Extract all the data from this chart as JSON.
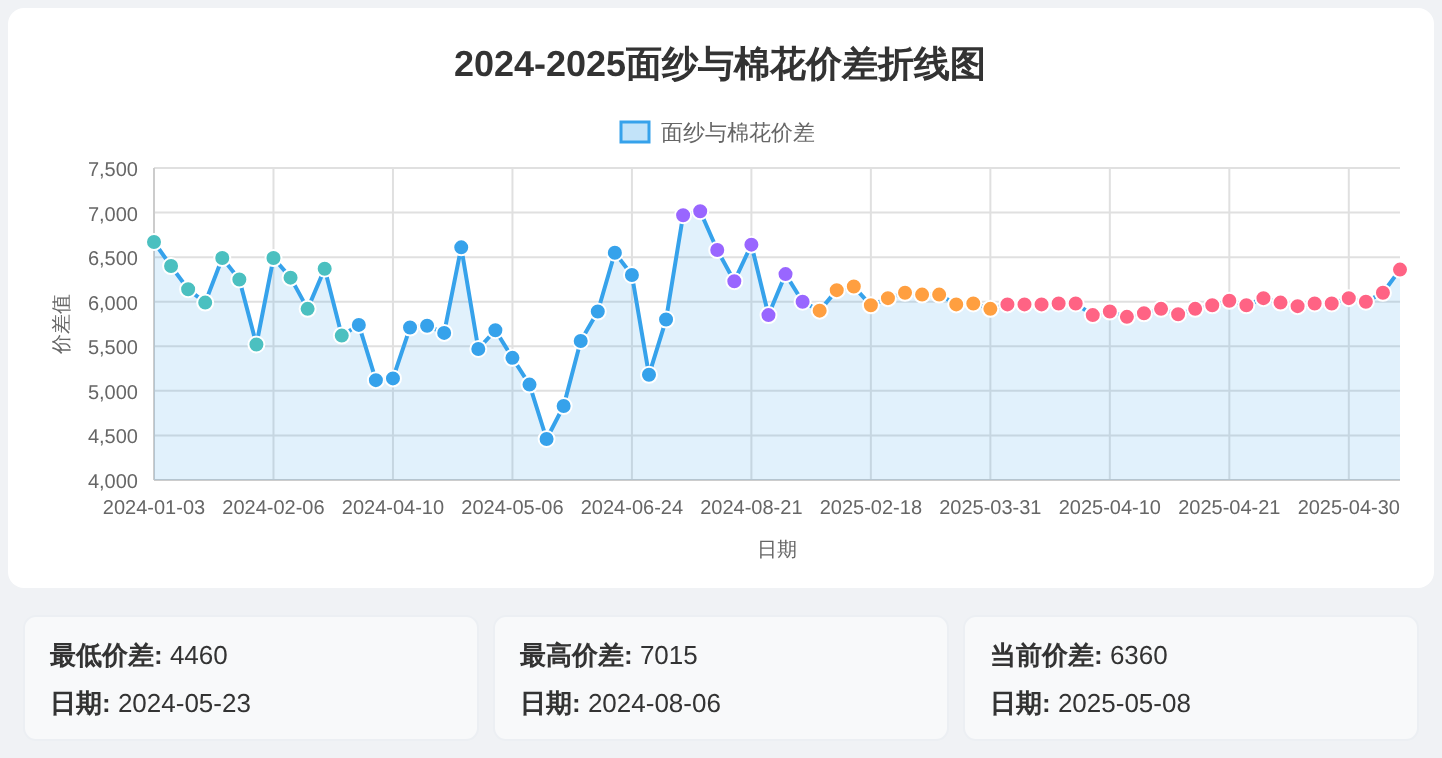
{
  "chart_data": [
    {
      "type": "area",
      "title": "2024-2025面纱与棉花价差折线图",
      "xlabel": "日期",
      "ylabel": "价差值",
      "categories": [
        "2024-01-03",
        null,
        null,
        null,
        null,
        null,
        null,
        "2024-02-06",
        null,
        null,
        null,
        null,
        null,
        null,
        "2024-04-10",
        null,
        null,
        null,
        null,
        null,
        null,
        "2024-05-06",
        null,
        null,
        null,
        null,
        null,
        null,
        "2024-06-24",
        null,
        null,
        null,
        null,
        null,
        null,
        "2024-08-21",
        null,
        null,
        null,
        null,
        null,
        null,
        "2025-02-18",
        null,
        null,
        null,
        null,
        null,
        null,
        "2025-03-31",
        null,
        null,
        null,
        null,
        null,
        null,
        "2025-04-10",
        null,
        null,
        null,
        null,
        null,
        null,
        "2025-04-21",
        null,
        null,
        null,
        null,
        null,
        null,
        "2025-04-30",
        null,
        null,
        null
      ],
      "series": [
        {
          "name": "面纱与棉花价差",
          "color": "#36a2eb",
          "values": [
            6670,
            6400,
            6140,
            5990,
            6490,
            6250,
            5520,
            6490,
            6270,
            5920,
            6370,
            5620,
            5740,
            5120,
            5140,
            5710,
            5730,
            5650,
            6610,
            5470,
            5680,
            5370,
            5070,
            4460,
            4830,
            5560,
            5890,
            6550,
            6300,
            5180,
            5800,
            6970,
            7015,
            6580,
            6230,
            6640,
            5850,
            6310,
            6000,
            5900,
            6130,
            6170,
            5960,
            6040,
            6100,
            6080,
            6080,
            5970,
            5980,
            5920,
            5970,
            5970,
            5970,
            5980,
            5980,
            5850,
            5890,
            5830,
            5870,
            5920,
            5860,
            5920,
            5960,
            6010,
            5960,
            6040,
            5990,
            5950,
            5980,
            5980,
            6040,
            6000,
            6100,
            6360
          ],
          "colors": [
            "#4bc0c0",
            "#4bc0c0",
            "#4bc0c0",
            "#4bc0c0",
            "#4bc0c0",
            "#4bc0c0",
            "#4bc0c0",
            "#4bc0c0",
            "#4bc0c0",
            "#4bc0c0",
            "#4bc0c0",
            "#4bc0c0",
            "#36a2eb",
            "#36a2eb",
            "#36a2eb",
            "#36a2eb",
            "#36a2eb",
            "#36a2eb",
            "#36a2eb",
            "#36a2eb",
            "#36a2eb",
            "#36a2eb",
            "#36a2eb",
            "#36a2eb",
            "#36a2eb",
            "#36a2eb",
            "#36a2eb",
            "#36a2eb",
            "#36a2eb",
            "#36a2eb",
            "#36a2eb",
            "#9966ff",
            "#9966ff",
            "#9966ff",
            "#9966ff",
            "#9966ff",
            "#9966ff",
            "#9966ff",
            "#9966ff",
            "#ff9f40",
            "#ff9f40",
            "#ff9f40",
            "#ff9f40",
            "#ff9f40",
            "#ff9f40",
            "#ff9f40",
            "#ff9f40",
            "#ff9f40",
            "#ff9f40",
            "#ff9f40",
            "#ff6384",
            "#ff6384",
            "#ff6384",
            "#ff6384",
            "#ff6384",
            "#ff6384",
            "#ff6384",
            "#ff6384",
            "#ff6384",
            "#ff6384",
            "#ff6384",
            "#ff6384",
            "#ff6384",
            "#ff6384",
            "#ff6384",
            "#ff6384",
            "#ff6384",
            "#ff6384",
            "#ff6384",
            "#ff6384",
            "#ff6384",
            "#ff6384",
            "#ff6384",
            "#ff6384"
          ]
        }
      ],
      "ylim": [
        4000,
        7500
      ],
      "yticks": [
        {
          "value": 4000,
          "label": "4,000"
        },
        {
          "value": 4500,
          "label": "4,500"
        },
        {
          "value": 5000,
          "label": "5,000"
        },
        {
          "value": 5500,
          "label": "5,500"
        },
        {
          "value": 6000,
          "label": "6,000"
        },
        {
          "value": 6500,
          "label": "6,500"
        },
        {
          "value": 7000,
          "label": "7,000"
        },
        {
          "value": 7500,
          "label": "7,500"
        }
      ],
      "grid": true,
      "legend": "top",
      "marker": "circle",
      "line_style": "solid"
    },
    {
      "type": "other",
      "annotations": [
        "最低价差: 4460",
        "日期: 2024-05-23",
        "最高价差: 7015",
        "日期: 2024-08-06",
        "当前价差: 6360",
        "日期: 2025-05-08"
      ]
    }
  ]
}
